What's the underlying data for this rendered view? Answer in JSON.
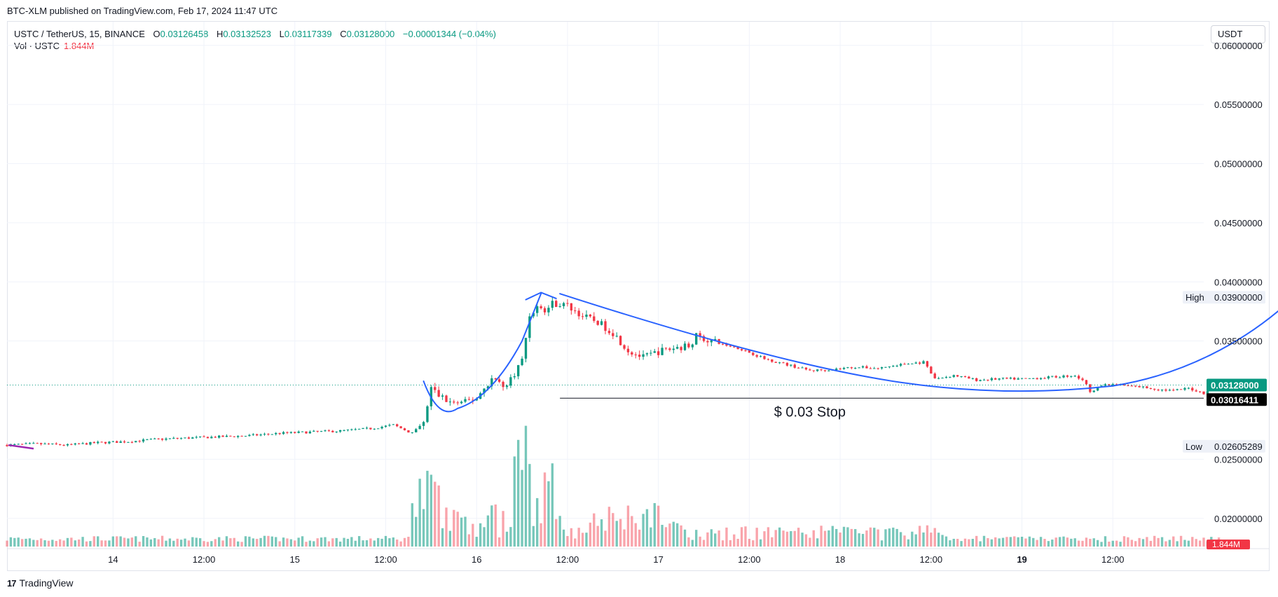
{
  "published": "BTC-XLM published on TradingView.com, Feb 17, 2024 11:47 UTC",
  "legend": {
    "symbol": "USTC / TetherUS, 15, BINANCE",
    "open_label": "O",
    "open": "0.03126458",
    "high_label": "H",
    "high": "0.03132523",
    "low_label": "L",
    "low": "0.03117339",
    "close_label": "C",
    "close": "0.03128000",
    "change": "−0.00001344 (−0.04%)",
    "volume_label": "Vol · USTC",
    "volume": "1.844M"
  },
  "currency_button": "USDT",
  "branding": {
    "logo": "17",
    "text": "TradingView"
  },
  "colors": {
    "up": "#089981",
    "down": "#f23645",
    "drawing": "#2962ff",
    "grid": "#f0f3fa",
    "price_line": "#089981"
  },
  "chart_data": {
    "type": "candlestick",
    "interval": "15",
    "y_axis": {
      "scale": "linear",
      "range": [
        0.0175,
        0.062
      ],
      "ticks": [
        "0.06000000",
        "0.05500000",
        "0.05000000",
        "0.04500000",
        "0.04000000",
        "0.03500000",
        "0.02500000",
        "0.02000000"
      ]
    },
    "x_axis": {
      "ticks": [
        "14",
        "12:00",
        "15",
        "12:00",
        "16",
        "12:00",
        "17",
        "12:00",
        "18",
        "12:00",
        "19",
        "12:00"
      ],
      "bold_ticks": [
        "19"
      ],
      "range_hours": [
        -14,
        144
      ]
    },
    "price_labels": {
      "last": "0.03128000",
      "stop": "0.03016411",
      "high_label": "High",
      "high": "0.03900000",
      "low_label": "Low",
      "low": "0.02605289",
      "volume": "1.844M"
    },
    "annotation": "$ 0.03 Stop",
    "price_path": [
      [
        -14,
        0.0262
      ],
      [
        -10,
        0.0263
      ],
      [
        -6,
        0.0262
      ],
      [
        -2,
        0.0264
      ],
      [
        2,
        0.0265
      ],
      [
        6,
        0.0267
      ],
      [
        10,
        0.0268
      ],
      [
        14,
        0.0269
      ],
      [
        18,
        0.027
      ],
      [
        22,
        0.0272
      ],
      [
        26,
        0.0273
      ],
      [
        30,
        0.0274
      ],
      [
        34,
        0.0276
      ],
      [
        37,
        0.0279
      ],
      [
        39.5,
        0.0272
      ],
      [
        41,
        0.028
      ],
      [
        42,
        0.031
      ],
      [
        43,
        0.0304
      ],
      [
        44.5,
        0.0298
      ],
      [
        46,
        0.0297
      ],
      [
        48,
        0.0302
      ],
      [
        50,
        0.0318
      ],
      [
        52,
        0.0312
      ],
      [
        54,
        0.0334
      ],
      [
        55,
        0.0372
      ],
      [
        56,
        0.0379
      ],
      [
        57,
        0.0375
      ],
      [
        58,
        0.0382
      ],
      [
        60,
        0.038
      ],
      [
        62,
        0.0371
      ],
      [
        64,
        0.0366
      ],
      [
        66,
        0.0357
      ],
      [
        68,
        0.0342
      ],
      [
        70,
        0.0336
      ],
      [
        72,
        0.0341
      ],
      [
        74,
        0.0344
      ],
      [
        76,
        0.0346
      ],
      [
        77,
        0.0354
      ],
      [
        80,
        0.0348
      ],
      [
        83,
        0.0343
      ],
      [
        86,
        0.0335
      ],
      [
        89,
        0.033
      ],
      [
        92,
        0.0325
      ],
      [
        95,
        0.0326
      ],
      [
        98,
        0.0328
      ],
      [
        101,
        0.0327
      ],
      [
        104,
        0.033
      ],
      [
        107,
        0.0332
      ],
      [
        108.5,
        0.0318
      ],
      [
        111,
        0.0321
      ],
      [
        114,
        0.0317
      ],
      [
        117,
        0.0318
      ],
      [
        120,
        0.0318
      ],
      [
        123,
        0.0319
      ],
      [
        125,
        0.032
      ],
      [
        127,
        0.0321
      ],
      [
        128.5,
        0.0314
      ],
      [
        129,
        0.0306
      ],
      [
        130,
        0.0312
      ],
      [
        132,
        0.0313
      ],
      [
        134,
        0.0312
      ],
      [
        136,
        0.0311
      ],
      [
        138,
        0.0309
      ],
      [
        140,
        0.0308
      ],
      [
        142,
        0.031
      ],
      [
        144,
        0.0306
      ],
      [
        145,
        0.031
      ],
      [
        146,
        0.0309
      ],
      [
        147,
        0.0313
      ]
    ]
  }
}
